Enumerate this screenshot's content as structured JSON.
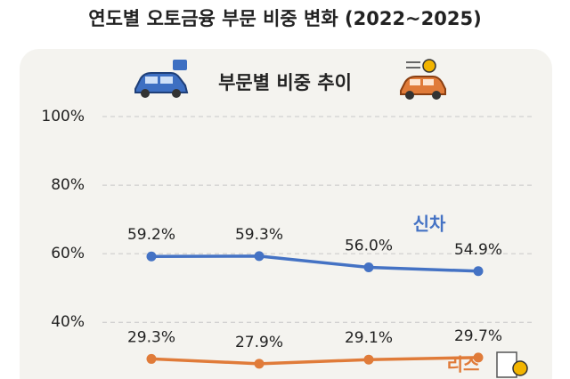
{
  "chart_data": {
    "type": "line",
    "title": "연도별 오토금융 부문 비중 변화 (2022~2025)",
    "subtitle": "부문별 비중 추이",
    "categories": [
      null,
      null,
      null,
      null
    ],
    "series": [
      {
        "name": "신차",
        "color": "#4472c4",
        "values": [
          59.2,
          59.3,
          56.0,
          54.9
        ],
        "value_labels": [
          "59.2%",
          "59.3%",
          "56.0%",
          "54.9%"
        ]
      },
      {
        "name": "리스",
        "color": "#e07b39",
        "values": [
          29.3,
          27.9,
          29.1,
          29.7
        ],
        "value_labels": [
          "29.3%",
          "27.9%",
          "29.1%",
          "29.7%"
        ]
      }
    ],
    "ylim": [
      25,
      100
    ],
    "yticks": [
      {
        "value": 100,
        "label": "100%"
      },
      {
        "value": 80,
        "label": "80%"
      },
      {
        "value": 60,
        "label": "60%"
      },
      {
        "value": 40,
        "label": "40%"
      }
    ],
    "grid": true
  }
}
